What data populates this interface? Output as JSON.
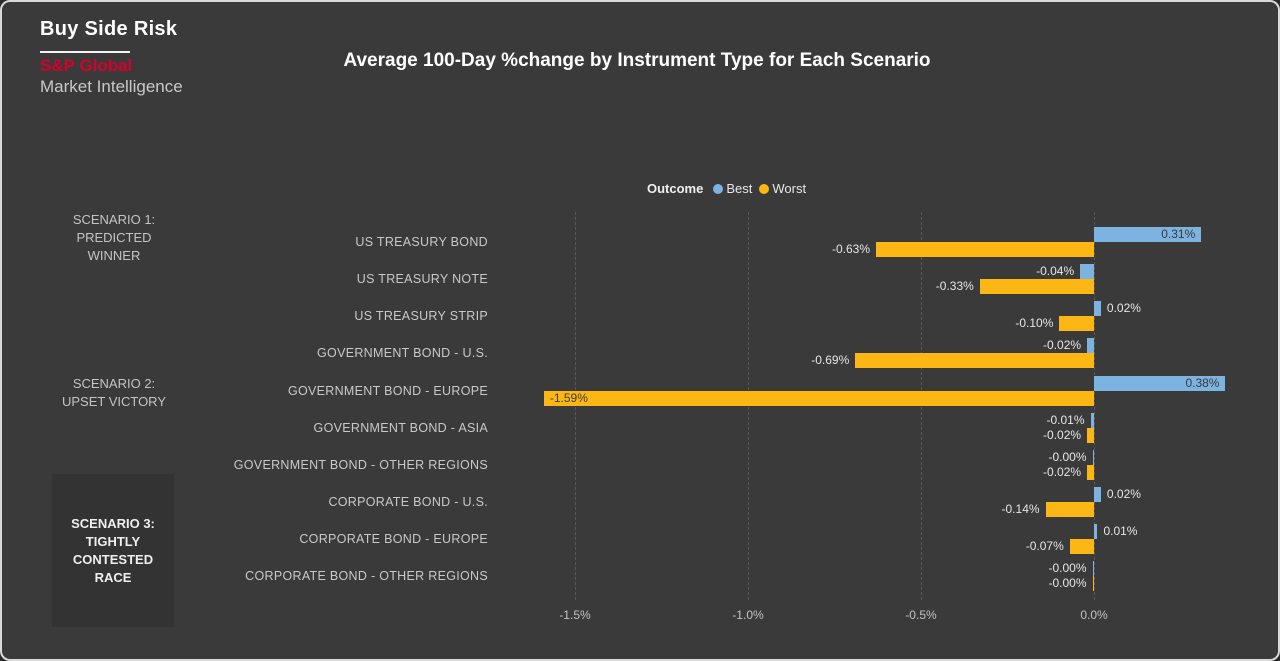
{
  "header": {
    "report_title": "Buy Side Risk",
    "brand_line1": "S&P Global",
    "brand_line2": "Market Intelligence",
    "chart_title": "Average 100-Day %change by Instrument Type for Each Scenario"
  },
  "colors": {
    "background": "#3a3a3a",
    "best": "#7db3e0",
    "worst": "#fdb714",
    "brand_red": "#d6002b",
    "inside_label": "#3a3a3a",
    "outside_label": "#e6e6e6"
  },
  "legend": {
    "label": "Outcome",
    "items": [
      {
        "name": "Best",
        "color": "#7db3e0"
      },
      {
        "name": "Worst",
        "color": "#fdb714"
      }
    ]
  },
  "scenarios": [
    {
      "lines": [
        "SCENARIO 1:",
        "PREDICTED",
        "WINNER"
      ],
      "highlighted": false
    },
    {
      "lines": [
        "SCENARIO 2:",
        "UPSET VICTORY"
      ],
      "highlighted": false
    },
    {
      "lines": [
        "SCENARIO 3:",
        "TIGHTLY",
        "CONTESTED",
        "RACE"
      ],
      "highlighted": true
    }
  ],
  "chart_data": {
    "type": "bar",
    "orientation": "horizontal",
    "title": "Average 100-Day %change by Instrument Type for Each Scenario",
    "categories": [
      "US TREASURY BOND",
      "US TREASURY NOTE",
      "US TREASURY STRIP",
      "GOVERNMENT BOND - U.S.",
      "GOVERNMENT BOND - EUROPE",
      "GOVERNMENT BOND - ASIA",
      "GOVERNMENT BOND - OTHER REGIONS",
      "CORPORATE BOND - U.S.",
      "CORPORATE BOND - EUROPE",
      "CORPORATE BOND - OTHER REGIONS"
    ],
    "series": [
      {
        "name": "Best",
        "color": "#7db3e0",
        "values": [
          0.31,
          -0.04,
          0.02,
          -0.02,
          0.38,
          -0.01,
          -0.0,
          0.02,
          0.01,
          -0.0
        ],
        "labels": [
          "0.31%",
          "-0.04%",
          "0.02%",
          "-0.02%",
          "0.38%",
          "-0.01%",
          "-0.00%",
          "0.02%",
          "0.01%",
          "-0.00%"
        ]
      },
      {
        "name": "Worst",
        "color": "#fdb714",
        "values": [
          -0.63,
          -0.33,
          -0.1,
          -0.69,
          -1.59,
          -0.02,
          -0.02,
          -0.14,
          -0.07,
          -0.0
        ],
        "labels": [
          "-0.63%",
          "-0.33%",
          "-0.10%",
          "-0.69%",
          "-1.59%",
          "-0.02%",
          "-0.02%",
          "-0.14%",
          "-0.07%",
          "-0.00%"
        ]
      }
    ],
    "x_axis": {
      "ticks": [
        "-1.5%",
        "-1.0%",
        "-0.5%",
        "0.0%"
      ],
      "tick_values": [
        -1.5,
        -1.0,
        -0.5,
        0.0
      ],
      "range": [
        -1.7,
        0.45
      ]
    },
    "ylabel": "",
    "xlabel": "",
    "grid": "dashed-vertical",
    "legend_position": "top-center"
  }
}
